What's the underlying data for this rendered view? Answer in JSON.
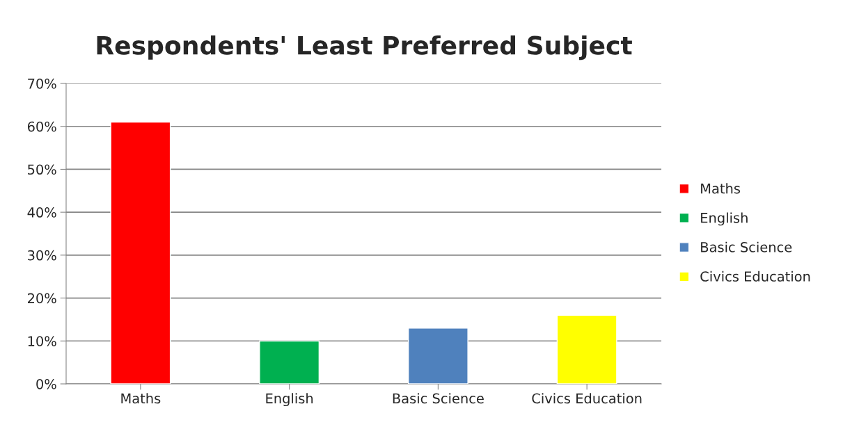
{
  "chart_data": {
    "type": "bar",
    "title": "Respondents' Least Preferred Subject",
    "categories": [
      "Maths",
      "English",
      "Basic Science",
      "Civics Education"
    ],
    "series": [
      {
        "name": "Maths",
        "color": "#ff0000",
        "values": [
          61,
          null,
          null,
          null
        ]
      },
      {
        "name": "English",
        "color": "#00b050",
        "values": [
          null,
          10,
          null,
          null
        ]
      },
      {
        "name": "Basic Science",
        "color": "#4f81bd",
        "values": [
          null,
          null,
          13,
          null
        ]
      },
      {
        "name": "Civics Education",
        "color": "#ffff00",
        "values": [
          null,
          null,
          null,
          16
        ]
      }
    ],
    "ylim": [
      0,
      70
    ],
    "yticks": [
      {
        "value": 0,
        "label": "0%"
      },
      {
        "value": 10,
        "label": "10%"
      },
      {
        "value": 20,
        "label": "20%"
      },
      {
        "value": 30,
        "label": "30%"
      },
      {
        "value": 40,
        "label": "40%"
      },
      {
        "value": 50,
        "label": "50%"
      },
      {
        "value": 60,
        "label": "60%"
      },
      {
        "value": 70,
        "label": "70%"
      }
    ],
    "grid": "y",
    "legend": "right"
  }
}
